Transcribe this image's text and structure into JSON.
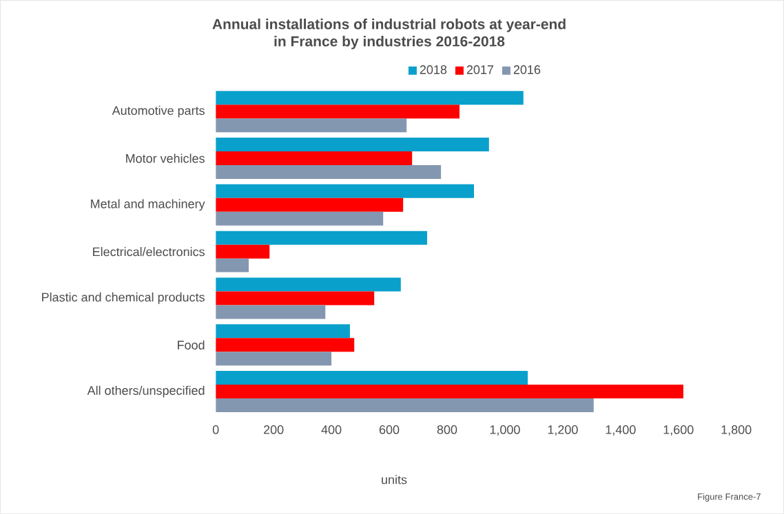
{
  "chart_data": {
    "type": "bar",
    "orientation": "horizontal",
    "title": "Annual installations of industrial robots at year-end\nin France by industries 2016-2018",
    "xlabel": "units",
    "categories": [
      "Automotive parts",
      "Motor vehicles",
      "Metal and machinery",
      "Electrical/electronics",
      "Plastic and chemical products",
      "Food",
      "All others/unspecified"
    ],
    "series": [
      {
        "name": "2018",
        "color": "#0aa0cc",
        "values": [
          1064,
          945,
          893,
          731,
          640,
          464,
          1079
        ]
      },
      {
        "name": "2017",
        "color": "#ff0000",
        "values": [
          843,
          679,
          648,
          186,
          548,
          479,
          1617
        ]
      },
      {
        "name": "2016",
        "color": "#8497b0",
        "values": [
          660,
          779,
          579,
          114,
          379,
          400,
          1307
        ]
      }
    ],
    "xlim": [
      0,
      1800
    ],
    "xticks": [
      0,
      200,
      400,
      600,
      800,
      {
        "value": 1000,
        "label": "1,000"
      },
      {
        "value": 1200,
        "label": "1,200"
      },
      {
        "value": 1400,
        "label": "1,400"
      },
      {
        "value": 1600,
        "label": "1,600"
      },
      {
        "value": 1800,
        "label": "1,800"
      }
    ],
    "legend": "top",
    "annotations": [
      "Figure France-7"
    ]
  }
}
